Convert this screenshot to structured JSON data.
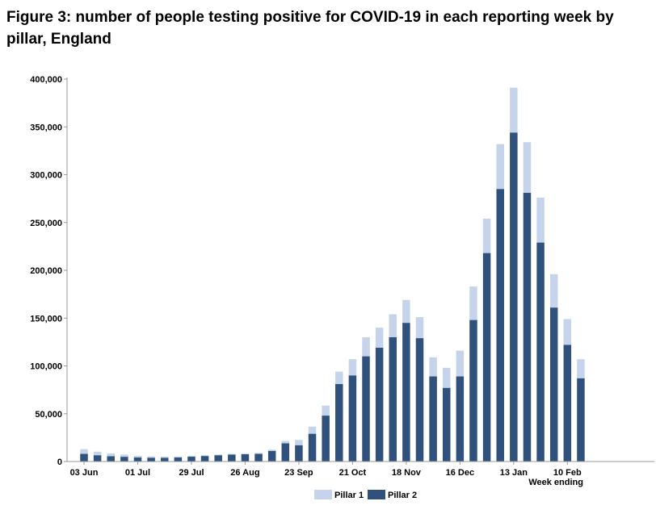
{
  "title": "Figure 3: number of people testing positive for COVID-19 in each reporting week by pillar, England",
  "colors": {
    "pillar1": "#c5d4ea",
    "pillar2": "#2f517c"
  },
  "chart_data": {
    "type": "bar",
    "stacked": true,
    "title": "Figure 3: number of people testing positive for COVID-19 in each reporting week by pillar, England",
    "xlabel": "Week ending",
    "ylabel": "",
    "ylim": [
      0,
      400000
    ],
    "yticks": [
      0,
      50000,
      100000,
      150000,
      200000,
      250000,
      300000,
      350000,
      400000
    ],
    "ytick_labels": [
      "0",
      "50,000",
      "100,000",
      "150,000",
      "200,000",
      "250,000",
      "300,000",
      "350,000",
      "400,000"
    ],
    "categories": [
      "03 Jun",
      "10 Jun",
      "17 Jun",
      "24 Jun",
      "01 Jul",
      "08 Jul",
      "15 Jul",
      "22 Jul",
      "29 Jul",
      "05 Aug",
      "12 Aug",
      "19 Aug",
      "26 Aug",
      "02 Sep",
      "09 Sep",
      "16 Sep",
      "23 Sep",
      "30 Sep",
      "07 Oct",
      "14 Oct",
      "21 Oct",
      "28 Oct",
      "04 Nov",
      "11 Nov",
      "18 Nov",
      "25 Nov",
      "02 Dec",
      "09 Dec",
      "16 Dec",
      "23 Dec",
      "30 Dec",
      "06 Jan",
      "13 Jan",
      "20 Jan",
      "27 Jan",
      "03 Feb",
      "10 Feb",
      "17 Feb"
    ],
    "xtick_labels": [
      "03 Jun",
      "01 Jul",
      "29 Jul",
      "26 Aug",
      "23 Sep",
      "21 Oct",
      "18 Nov",
      "16 Dec",
      "13 Jan",
      "10 Feb"
    ],
    "series": [
      {
        "name": "Pillar 1",
        "values": [
          5000,
          3800,
          3000,
          2400,
          1800,
          1500,
          1300,
          1100,
          1000,
          900,
          800,
          800,
          700,
          900,
          1400,
          2500,
          5500,
          7500,
          10500,
          13000,
          17000,
          20000,
          21000,
          24000,
          24000,
          22000,
          20000,
          21000,
          27000,
          35000,
          36000,
          47000,
          47000,
          53000,
          47000,
          35000,
          27000,
          20000
        ]
      },
      {
        "name": "Pillar 2",
        "values": [
          8000,
          6500,
          5500,
          4900,
          4200,
          3900,
          3800,
          4200,
          5000,
          5700,
          6500,
          7200,
          7600,
          8000,
          11000,
          19000,
          17000,
          29000,
          48000,
          81000,
          90000,
          110000,
          119000,
          130000,
          145000,
          129000,
          89000,
          77000,
          89000,
          148000,
          218000,
          285000,
          344000,
          281000,
          229000,
          161000,
          122000,
          87000
        ]
      }
    ],
    "legend": {
      "position": "bottom-center",
      "entries": [
        "Pillar 1",
        "Pillar 2"
      ]
    },
    "grid": false
  }
}
